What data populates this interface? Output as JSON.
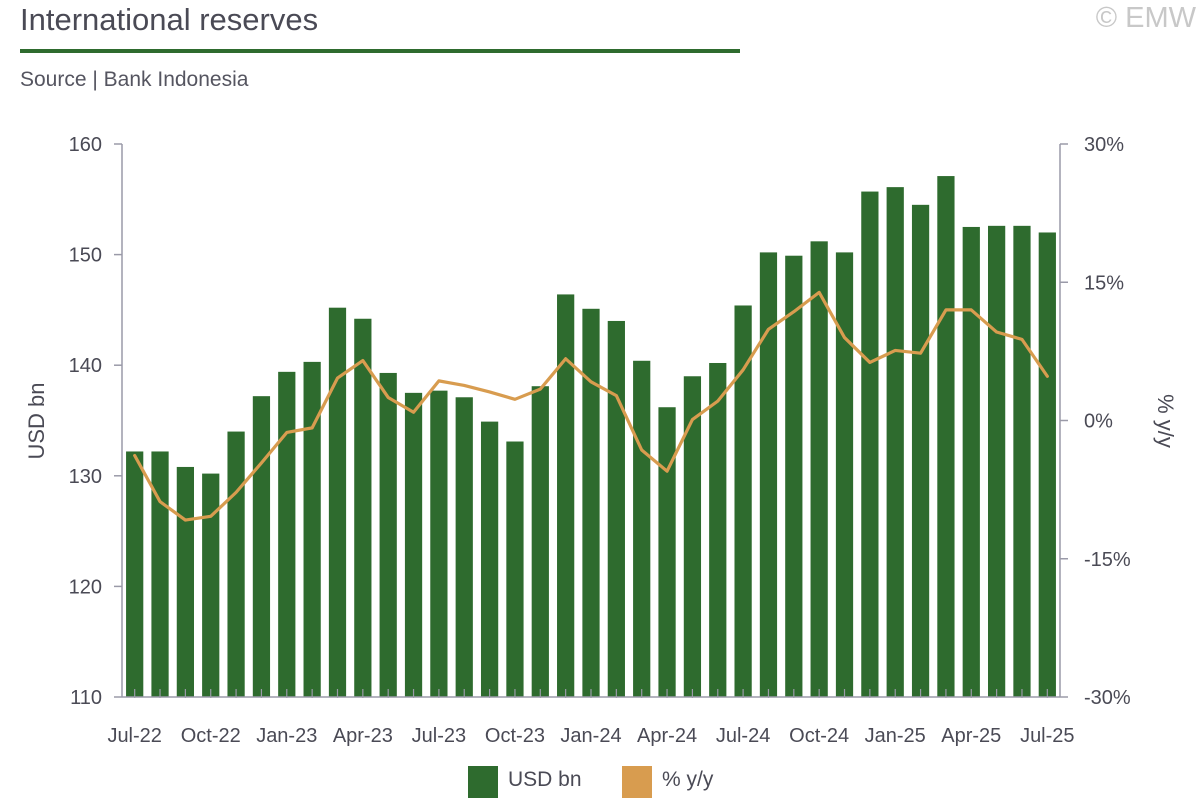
{
  "header": {
    "title": "International reserves",
    "source": "Source | Bank Indonesia",
    "copyright": "© EMW"
  },
  "colors": {
    "bar": "#2e6b2e",
    "line": "#d89c4f",
    "axis": "#9a9aa8",
    "text": "#4a4a55"
  },
  "legend": {
    "items": [
      {
        "label": "USD bn",
        "color": "#2e6b2e"
      },
      {
        "label": "% y/y",
        "color": "#d89c4f"
      }
    ]
  },
  "chart_data": {
    "type": "bar",
    "title": "International reserves",
    "ylabel": "USD bn",
    "y2label": "% y/y",
    "ylim": [
      110,
      160
    ],
    "y2lim": [
      -30,
      30
    ],
    "yticks": [
      "110",
      "120",
      "130",
      "140",
      "150",
      "160"
    ],
    "y2ticks": [
      "-30%",
      "-15%",
      "0%",
      "15%",
      "30%"
    ],
    "xtick_labels": [
      "Jul-22",
      "Oct-22",
      "Jan-23",
      "Apr-23",
      "Jul-23",
      "Oct-23",
      "Jan-24",
      "Apr-24",
      "Jul-24",
      "Oct-24",
      "Jan-25",
      "Apr-25",
      "Jul-25"
    ],
    "categories": [
      "Jul-22",
      "Aug-22",
      "Sep-22",
      "Oct-22",
      "Nov-22",
      "Dec-22",
      "Jan-23",
      "Feb-23",
      "Mar-23",
      "Apr-23",
      "May-23",
      "Jun-23",
      "Jul-23",
      "Aug-23",
      "Sep-23",
      "Oct-23",
      "Nov-23",
      "Dec-23",
      "Jan-24",
      "Feb-24",
      "Mar-24",
      "Apr-24",
      "May-24",
      "Jun-24",
      "Jul-24",
      "Aug-24",
      "Sep-24",
      "Oct-24",
      "Nov-24",
      "Dec-24",
      "Jan-25",
      "Feb-25",
      "Mar-25",
      "Apr-25",
      "May-25",
      "Jun-25",
      "Jul-25"
    ],
    "grid": false,
    "legend_position": "bottom",
    "series": [
      {
        "name": "USD bn",
        "type": "bar",
        "axis": "left",
        "values": [
          132.2,
          132.2,
          130.8,
          130.2,
          134.0,
          137.2,
          139.4,
          140.3,
          145.2,
          144.2,
          139.3,
          137.5,
          137.7,
          137.1,
          134.9,
          133.1,
          138.1,
          146.4,
          145.1,
          144.0,
          140.4,
          136.2,
          139.0,
          140.2,
          145.4,
          150.2,
          149.9,
          151.2,
          150.2,
          155.7,
          156.1,
          154.5,
          157.1,
          152.5,
          152.6,
          152.6,
          152.0
        ]
      },
      {
        "name": "% y/y",
        "type": "line",
        "axis": "right",
        "values": [
          -3.8,
          -8.8,
          -10.8,
          -10.4,
          -7.8,
          -4.6,
          -1.3,
          -0.8,
          4.6,
          6.5,
          2.5,
          0.9,
          4.3,
          3.8,
          3.1,
          2.3,
          3.4,
          6.7,
          4.2,
          2.7,
          -3.2,
          -5.5,
          0.1,
          2.1,
          5.5,
          9.9,
          11.8,
          13.9,
          9.0,
          6.3,
          7.6,
          7.3,
          12.0,
          12.0,
          9.6,
          8.8,
          4.8
        ]
      }
    ]
  }
}
